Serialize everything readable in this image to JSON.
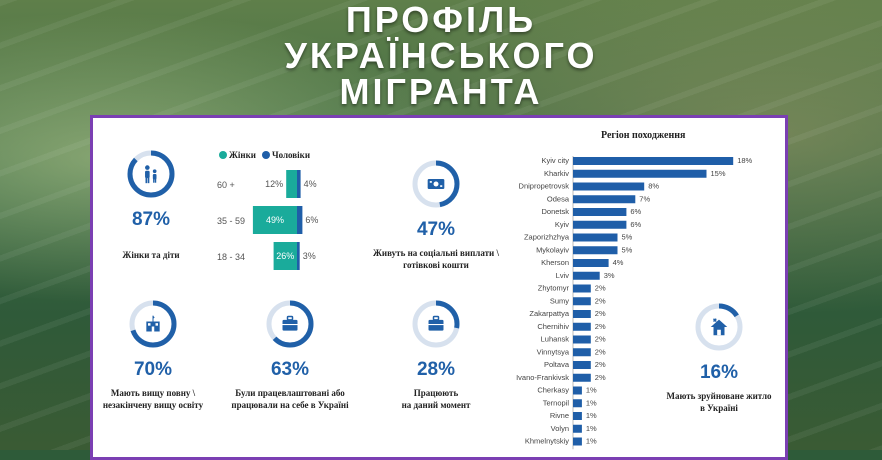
{
  "header": {
    "title_lines": [
      "ПРОФІЛЬ",
      "УКРАЇНСЬКОГО",
      "МІГРАНТА"
    ]
  },
  "stats": {
    "women_children": {
      "value": "87%",
      "caption": "Жінки та діти",
      "fraction": 0.87
    },
    "social_payments": {
      "value": "47%",
      "caption_lines": [
        "Живуть на соціальні виплати \\",
        "готівкові кошти"
      ],
      "fraction": 0.47
    },
    "higher_education": {
      "value": "70%",
      "caption_lines": [
        "Мають вищу повну \\",
        "незакінчену вищу освіту"
      ],
      "fraction": 0.7
    },
    "employed_before": {
      "value": "63%",
      "caption_lines": [
        "Були працевлаштовані або",
        "працювали на себе в Україні"
      ],
      "fraction": 0.63
    },
    "working_now": {
      "value": "28%",
      "caption_lines": [
        "Працюють",
        "на даний момент"
      ],
      "fraction": 0.28
    },
    "destroyed_housing": {
      "value": "16%",
      "caption_lines": [
        "Мають зруйноване житло",
        "в Україні"
      ],
      "fraction": 0.16
    }
  },
  "colors": {
    "women": "#1aab9b",
    "men": "#1f5ea8",
    "ring_track": "#d7e1ee",
    "accent": "#2060a8",
    "card_border": "#7b3fb3"
  },
  "chart_data": [
    {
      "type": "bar",
      "orientation": "horizontal-diverging",
      "categories": [
        "60 +",
        "35 - 59",
        "18 - 34"
      ],
      "series": [
        {
          "name": "Жінки",
          "values": [
            12,
            49,
            26
          ],
          "labels": [
            "12%",
            "49%",
            "26%"
          ]
        },
        {
          "name": "Чоловіки",
          "values": [
            4,
            6,
            3
          ],
          "labels": [
            "4%",
            "6%",
            "3%"
          ]
        }
      ],
      "legend": "top"
    },
    {
      "type": "bar",
      "orientation": "horizontal",
      "title": "Регіон походження",
      "categories": [
        "Kyiv city",
        "Kharkiv",
        "Dnipropetrovsk",
        "Odesa",
        "Donetsk",
        "Kyiv",
        "Zaporizhzhya",
        "Mykolayiv",
        "Kherson",
        "Lviv",
        "Zhytomyr",
        "Sumy",
        "Zakarpattya",
        "Chernihiv",
        "Luhansk",
        "Vinnytsya",
        "Poltava",
        "Ivano-Frankivsk",
        "Cherkasy",
        "Ternopil",
        "Rivne",
        "Volyn",
        "Khmelnytskiy"
      ],
      "values": [
        18,
        15,
        8,
        7,
        6,
        6,
        5,
        5,
        4,
        3,
        2,
        2,
        2,
        2,
        2,
        2,
        2,
        2,
        1,
        1,
        1,
        1,
        1
      ],
      "labels": [
        "18%",
        "15%",
        "8%",
        "7%",
        "6%",
        "6%",
        "5%",
        "5%",
        "4%",
        "3%",
        "2%",
        "2%",
        "2%",
        "2%",
        "2%",
        "2%",
        "2%",
        "2%",
        "1%",
        "1%",
        "1%",
        "1%",
        "1%"
      ]
    }
  ]
}
